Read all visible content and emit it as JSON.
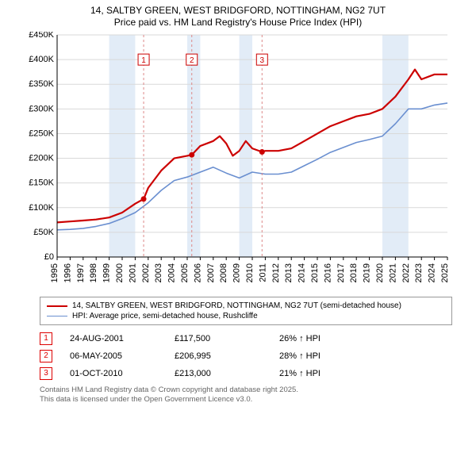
{
  "title_line1": "14, SALTBY GREEN, WEST BRIDGFORD, NOTTINGHAM, NG2 7UT",
  "title_line2": "Price paid vs. HM Land Registry's House Price Index (HPI)",
  "chart": {
    "background": "#ffffff",
    "shade_color": "#e2ecf7",
    "shade_ranges": [
      [
        1999,
        2001
      ],
      [
        2005,
        2006
      ],
      [
        2009,
        2010
      ],
      [
        2020,
        2022
      ]
    ],
    "grid_color": "#d9d9d9",
    "axis_color": "#000000",
    "x_min": 1995,
    "x_max": 2025,
    "x_ticks": [
      1995,
      1996,
      1997,
      1998,
      1999,
      2000,
      2001,
      2002,
      2003,
      2004,
      2005,
      2006,
      2007,
      2008,
      2009,
      2010,
      2011,
      2012,
      2013,
      2014,
      2015,
      2016,
      2017,
      2018,
      2019,
      2020,
      2021,
      2022,
      2023,
      2024,
      2025
    ],
    "y_min": 0,
    "y_max": 450000,
    "y_ticks": [
      0,
      50000,
      100000,
      150000,
      200000,
      250000,
      300000,
      350000,
      400000,
      450000
    ],
    "y_tick_labels": [
      "£0",
      "£50K",
      "£100K",
      "£150K",
      "£200K",
      "£250K",
      "£300K",
      "£350K",
      "£400K",
      "£450K"
    ],
    "series": [
      {
        "id": "price_paid",
        "label": "14, SALTBY GREEN, WEST BRIDGFORD, NOTTINGHAM, NG2 7UT (semi-detached house)",
        "color": "#cc0000",
        "width": 2.2,
        "points": [
          [
            1995,
            70000
          ],
          [
            1996,
            72000
          ],
          [
            1997,
            74000
          ],
          [
            1998,
            76000
          ],
          [
            1999,
            80000
          ],
          [
            2000,
            90000
          ],
          [
            2001,
            108000
          ],
          [
            2001.65,
            117500
          ],
          [
            2002,
            140000
          ],
          [
            2003,
            175000
          ],
          [
            2004,
            200000
          ],
          [
            2005,
            205000
          ],
          [
            2005.35,
            206995
          ],
          [
            2006,
            225000
          ],
          [
            2007,
            235000
          ],
          [
            2007.5,
            245000
          ],
          [
            2008,
            230000
          ],
          [
            2008.5,
            205000
          ],
          [
            2009,
            215000
          ],
          [
            2009.5,
            235000
          ],
          [
            2010,
            220000
          ],
          [
            2010.75,
            213000
          ],
          [
            2011,
            215000
          ],
          [
            2012,
            215000
          ],
          [
            2013,
            220000
          ],
          [
            2014,
            235000
          ],
          [
            2015,
            250000
          ],
          [
            2016,
            265000
          ],
          [
            2017,
            275000
          ],
          [
            2018,
            285000
          ],
          [
            2019,
            290000
          ],
          [
            2020,
            300000
          ],
          [
            2021,
            325000
          ],
          [
            2022,
            360000
          ],
          [
            2022.5,
            380000
          ],
          [
            2023,
            360000
          ],
          [
            2024,
            370000
          ],
          [
            2025,
            370000
          ]
        ]
      },
      {
        "id": "hpi",
        "label": "HPI: Average price, semi-detached house, Rushcliffe",
        "color": "#6a8fd0",
        "width": 1.6,
        "points": [
          [
            1995,
            55000
          ],
          [
            1996,
            56000
          ],
          [
            1997,
            58000
          ],
          [
            1998,
            62000
          ],
          [
            1999,
            68000
          ],
          [
            2000,
            78000
          ],
          [
            2001,
            90000
          ],
          [
            2002,
            110000
          ],
          [
            2003,
            135000
          ],
          [
            2004,
            155000
          ],
          [
            2005,
            162000
          ],
          [
            2006,
            172000
          ],
          [
            2007,
            182000
          ],
          [
            2008,
            170000
          ],
          [
            2009,
            160000
          ],
          [
            2010,
            172000
          ],
          [
            2011,
            168000
          ],
          [
            2012,
            168000
          ],
          [
            2013,
            172000
          ],
          [
            2014,
            185000
          ],
          [
            2015,
            198000
          ],
          [
            2016,
            212000
          ],
          [
            2017,
            222000
          ],
          [
            2018,
            232000
          ],
          [
            2019,
            238000
          ],
          [
            2020,
            245000
          ],
          [
            2021,
            270000
          ],
          [
            2022,
            300000
          ],
          [
            2023,
            300000
          ],
          [
            2024,
            308000
          ],
          [
            2025,
            312000
          ]
        ]
      }
    ],
    "markers": [
      {
        "n": "1",
        "x": 2001.65,
        "y": 117500,
        "box_y": 400000
      },
      {
        "n": "2",
        "x": 2005.35,
        "y": 206995,
        "box_y": 400000
      },
      {
        "n": "3",
        "x": 2010.75,
        "y": 213000,
        "box_y": 400000
      }
    ],
    "marker_dashed_color": "#d88",
    "marker_dot_color": "#cc0000",
    "marker_box_border": "#cc0000",
    "marker_box_text": "#cc0000",
    "label_fontsize": 11
  },
  "legend": {
    "items": [
      {
        "color": "#cc0000",
        "width": 2.5,
        "label": "14, SALTBY GREEN, WEST BRIDGFORD, NOTTINGHAM, NG2 7UT (semi-detached house)"
      },
      {
        "color": "#6a8fd0",
        "width": 1.8,
        "label": "HPI: Average price, semi-detached house, Rushcliffe"
      }
    ]
  },
  "events": [
    {
      "n": "1",
      "date": "24-AUG-2001",
      "price": "£117,500",
      "hpi": "26% ↑ HPI"
    },
    {
      "n": "2",
      "date": "06-MAY-2005",
      "price": "£206,995",
      "hpi": "28% ↑ HPI"
    },
    {
      "n": "3",
      "date": "01-OCT-2010",
      "price": "£213,000",
      "hpi": "21% ↑ HPI"
    }
  ],
  "footer_line1": "Contains HM Land Registry data © Crown copyright and database right 2025.",
  "footer_line2": "This data is licensed under the Open Government Licence v3.0."
}
